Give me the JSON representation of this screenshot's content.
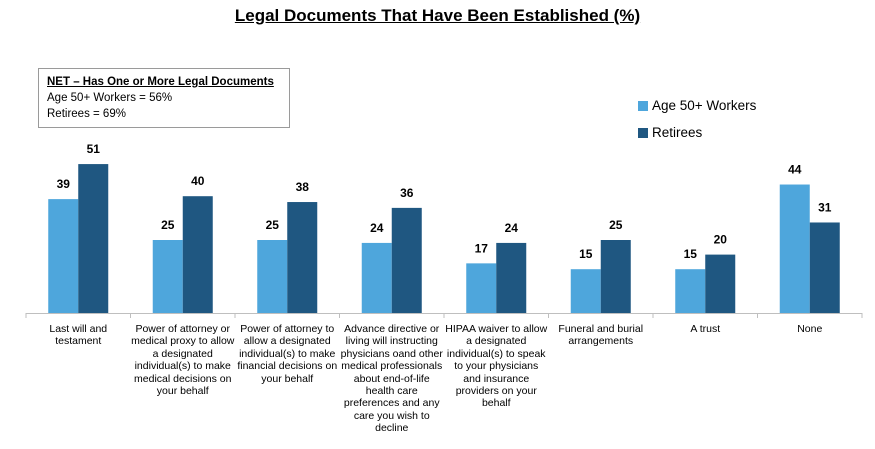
{
  "title": "Legal Documents That Have Been Established (%)",
  "net_box": {
    "heading": "NET – Has One or More Legal Documents",
    "line1": "Age 50+ Workers = 56%",
    "line2": "Retirees = 69%"
  },
  "colors": {
    "workers": "#4ea6dc",
    "retirees": "#1f5781"
  },
  "chart_data": {
    "type": "bar",
    "title": "Legal Documents That Have Been Established (%)",
    "categories": [
      "Last will and testament",
      "Power of attorney or medical proxy to allow a designated individual(s) to make medical decisions on your behalf",
      "Power of attorney to allow a designated individual(s) to make financial decisions on your behalf",
      "Advance directive or living will instructing physicians oand other medical professionals about end-of-life health care preferences and any care you wish to decline",
      "HIPAA waiver to allow a designated individual(s) to speak to your physicians and insurance providers on your behalf",
      "Funeral and burial arrangements",
      "A trust",
      "None"
    ],
    "series": [
      {
        "name": "Age 50+ Workers",
        "values": [
          39,
          25,
          25,
          24,
          17,
          15,
          15,
          44
        ]
      },
      {
        "name": "Retirees",
        "values": [
          51,
          40,
          38,
          36,
          24,
          25,
          20,
          31
        ]
      }
    ],
    "legend_position": "right",
    "data_labels": true,
    "grid": false
  }
}
